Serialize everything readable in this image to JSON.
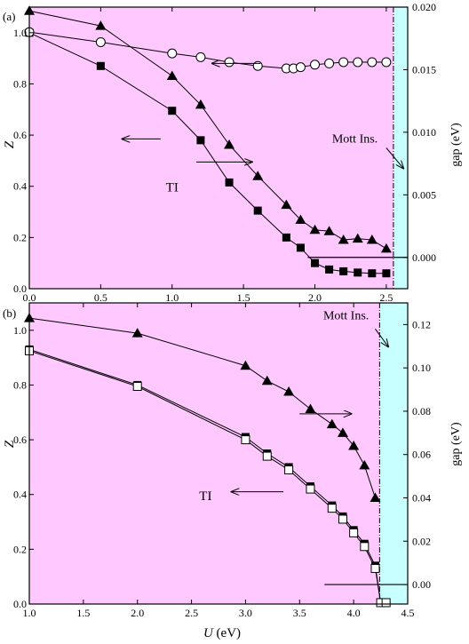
{
  "figure": {
    "shared_xlabel_var": "U",
    "shared_xlabel_unit": " (eV)"
  },
  "chart_data": [
    {
      "panel_label": "(a)",
      "type": "scatter",
      "xlim": [
        0,
        2.65
      ],
      "xticks": [
        0.0,
        0.5,
        1.0,
        1.5,
        2.0,
        2.5
      ],
      "xtick_labels": [
        "0.0",
        "0.5",
        "1.0",
        "1.5",
        "2.0",
        "2.5"
      ],
      "left_axis": {
        "label": "Z",
        "lim": [
          0,
          1.1
        ],
        "ticks": [
          0.0,
          0.2,
          0.4,
          0.6,
          0.8,
          1.0
        ],
        "tick_labels": [
          "0.0",
          "0.2",
          "0.4",
          "0.6",
          "0.8",
          "1.0"
        ]
      },
      "right_axis": {
        "label": "gap (eV)",
        "lim": [
          -0.0025,
          0.02
        ],
        "ticks": [
          0.0,
          0.005,
          0.01,
          0.015,
          0.02
        ],
        "tick_labels": [
          "0.000",
          "0.005",
          "0.010",
          "0.015",
          "0.020"
        ]
      },
      "shaded_regions": [
        {
          "x": [
            0,
            2.55
          ],
          "color": "#ffc8ff"
        },
        {
          "x": [
            2.55,
            2.65
          ],
          "color": "#c8ffff"
        }
      ],
      "transition_x": 2.55,
      "series": [
        {
          "axis": "left",
          "marker": "square-filled",
          "x": [
            0.0,
            0.5,
            1.0,
            1.2,
            1.4,
            1.6,
            1.8,
            1.9,
            2.0,
            2.1,
            2.2,
            2.3,
            2.4,
            2.5
          ],
          "y": [
            1.0,
            0.87,
            0.695,
            0.58,
            0.415,
            0.305,
            0.2,
            0.16,
            0.1,
            0.075,
            0.068,
            0.063,
            0.06,
            0.06
          ]
        },
        {
          "axis": "right",
          "marker": "triangle-filled",
          "x": [
            0.0,
            0.5,
            1.0,
            1.2,
            1.4,
            1.6,
            1.8,
            1.9,
            2.0,
            2.1,
            2.2,
            2.3,
            2.4,
            2.5
          ],
          "y": [
            0.0197,
            0.0185,
            0.0145,
            0.0122,
            0.009,
            0.0065,
            0.0042,
            0.003,
            0.0022,
            0.0021,
            0.0014,
            0.0015,
            0.0014,
            0.0007
          ]
        },
        {
          "axis": "right",
          "marker": "circle-open",
          "x": [
            0.0,
            0.5,
            1.0,
            1.2,
            1.4,
            1.6,
            1.8,
            1.85,
            1.9,
            2.0,
            2.1,
            2.2,
            2.3,
            2.4,
            2.5
          ],
          "y": [
            0.018,
            0.0172,
            0.0163,
            0.016,
            0.0156,
            0.0153,
            0.0151,
            0.0151,
            0.0152,
            0.0154,
            0.0155,
            0.0156,
            0.0156,
            0.0156,
            0.0156
          ]
        }
      ],
      "zero_line": {
        "x": [
          1.95,
          2.65
        ],
        "gap": 0.0
      },
      "annotations": [
        {
          "text": "TI",
          "x": 1.0,
          "y": 0.38
        },
        {
          "text": "Mott Ins.",
          "x": 2.28,
          "y": 0.57
        }
      ],
      "arrows": [
        {
          "x1": 0.92,
          "x2": 0.65,
          "y": 0.585,
          "dir": "left"
        },
        {
          "x1": 1.62,
          "x2": 1.28,
          "y": 0.88,
          "dir": "left"
        },
        {
          "x1": 1.17,
          "x2": 1.56,
          "y": 0.495,
          "dir": "right"
        },
        {
          "x1": 2.5,
          "x2": 2.62,
          "y1": 0.55,
          "y2": 0.47,
          "dir": "diag"
        }
      ]
    },
    {
      "panel_label": "(b)",
      "type": "scatter",
      "xlim": [
        1.0,
        4.5
      ],
      "xticks": [
        1.0,
        1.5,
        2.0,
        2.5,
        3.0,
        3.5,
        4.0,
        4.5
      ],
      "xtick_labels": [
        "1.0",
        "1.5",
        "2.0",
        "2.5",
        "3.0",
        "3.5",
        "4.0",
        "4.5"
      ],
      "left_axis": {
        "label": "Z",
        "lim": [
          0,
          1.1
        ],
        "ticks": [
          0.0,
          0.2,
          0.4,
          0.6,
          0.8,
          1.0
        ],
        "tick_labels": [
          "0.0",
          "0.2",
          "0.4",
          "0.6",
          "0.8",
          "1.0"
        ]
      },
      "right_axis": {
        "label": "gap (eV)",
        "lim": [
          -0.009,
          0.13
        ],
        "ticks": [
          0.0,
          0.02,
          0.04,
          0.06,
          0.08,
          0.1,
          0.12
        ],
        "tick_labels": [
          "0.00",
          "0.02",
          "0.04",
          "0.06",
          "0.08",
          "0.10",
          "0.12"
        ]
      },
      "shaded_regions": [
        {
          "x": [
            1.0,
            4.24
          ],
          "color": "#ffc8ff"
        },
        {
          "x": [
            4.24,
            4.5
          ],
          "color": "#c8ffff"
        }
      ],
      "transition_x": 4.24,
      "series": [
        {
          "axis": "left",
          "marker": "square-filled",
          "x": [
            1.0,
            2.0,
            3.0,
            3.2,
            3.4,
            3.6,
            3.8,
            3.9,
            4.0,
            4.1,
            4.2,
            4.25,
            4.3
          ],
          "y": [
            0.93,
            0.8,
            0.61,
            0.55,
            0.5,
            0.43,
            0.36,
            0.32,
            0.27,
            0.22,
            0.14,
            0.005,
            0.005
          ]
        },
        {
          "axis": "left",
          "marker": "square-open",
          "x": [
            1.0,
            2.0,
            3.0,
            3.2,
            3.4,
            3.6,
            3.8,
            3.9,
            4.0,
            4.1,
            4.2,
            4.25,
            4.3
          ],
          "y": [
            0.925,
            0.795,
            0.6,
            0.54,
            0.49,
            0.42,
            0.35,
            0.31,
            0.26,
            0.21,
            0.13,
            0.005,
            0.005
          ]
        },
        {
          "axis": "right",
          "marker": "triangle-filled",
          "x": [
            1.0,
            2.0,
            3.0,
            3.2,
            3.4,
            3.6,
            3.8,
            3.9,
            4.0,
            4.1,
            4.2
          ],
          "y": [
            0.123,
            0.116,
            0.101,
            0.094,
            0.089,
            0.081,
            0.074,
            0.07,
            0.064,
            0.055,
            0.04
          ]
        }
      ],
      "zero_line": {
        "x": [
          3.73,
          4.5
        ],
        "gap": 0.0
      },
      "annotations": [
        {
          "text": "TI",
          "x": 2.63,
          "y": 0.38
        },
        {
          "text": "Mott Ins.",
          "x": 3.93,
          "y": 1.04
        }
      ],
      "arrows": [
        {
          "x1": 3.35,
          "x2": 2.87,
          "y": 0.41,
          "dir": "left"
        },
        {
          "x1": 3.5,
          "x2": 3.98,
          "y": 0.695,
          "dir": "right"
        },
        {
          "x1": 4.2,
          "x2": 4.32,
          "y1": 1.005,
          "y2": 0.94,
          "dir": "diag"
        }
      ]
    }
  ]
}
